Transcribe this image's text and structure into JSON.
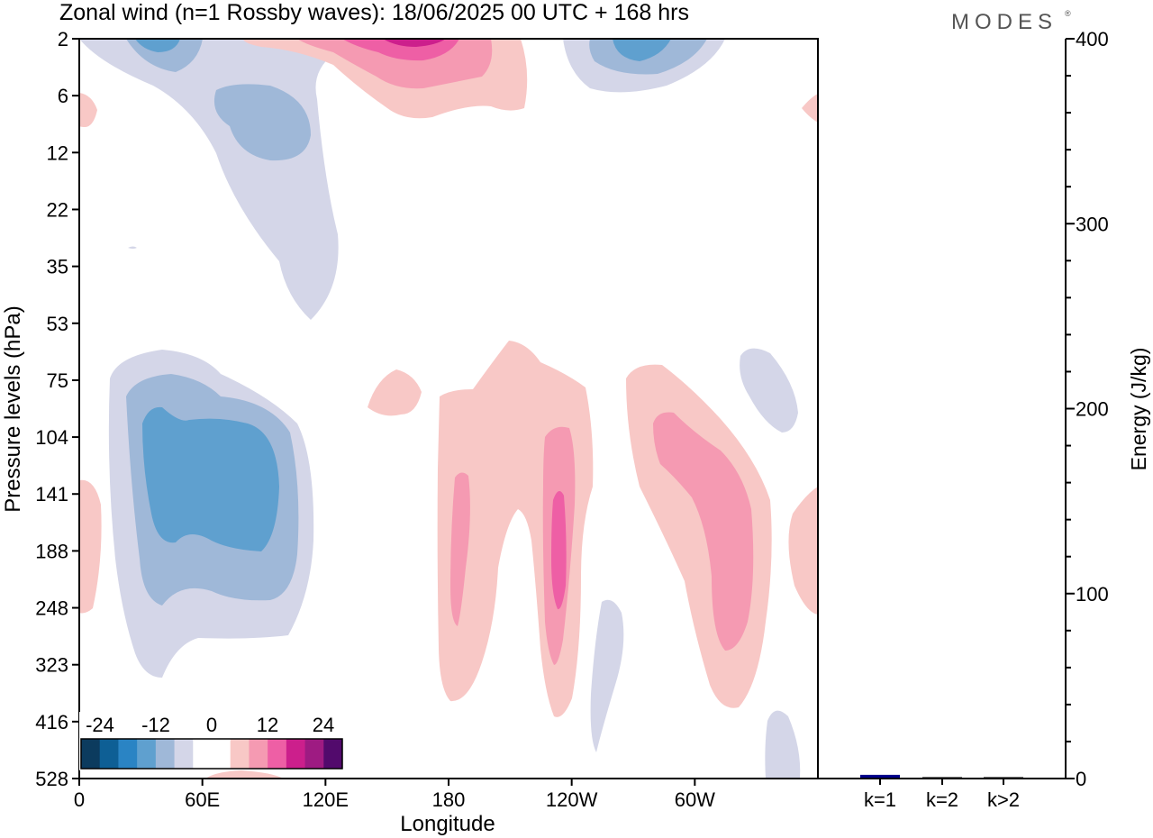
{
  "title": "Zonal wind (n=1 Rossby waves):  18/06/2025  00 UTC  + 168 hrs",
  "brand": "MODES",
  "brand_mark": "®",
  "chart_data": [
    {
      "type": "heatmap",
      "xlabel": "Longitude",
      "ylabel": "Pressure levels (hPa)",
      "x_ticks": [
        "0",
        "60E",
        "120E",
        "180",
        "120W",
        "60W"
      ],
      "x_tick_values": [
        0,
        60,
        120,
        180,
        240,
        300
      ],
      "xlim": [
        0,
        360
      ],
      "y_ticks": [
        "2",
        "6",
        "12",
        "22",
        "35",
        "53",
        "75",
        "104",
        "141",
        "188",
        "248",
        "323",
        "416",
        "528"
      ],
      "y_axis_order": "top-to-bottom",
      "colorbar": {
        "tick_labels": [
          "-24",
          "-12",
          "0",
          "12",
          "24"
        ],
        "colors": [
          "#0c3b5e",
          "#0e5f95",
          "#2a84c4",
          "#5fa0cf",
          "#9fb8d8",
          "#d4d6e8",
          "#ffffff",
          "#ffffff",
          "#f8c8c6",
          "#f59ab2",
          "#ee5fa5",
          "#cc1f8c",
          "#9e1b82",
          "#520a6c"
        ]
      },
      "features": [
        {
          "sign": "negative",
          "peak_magnitude": 12,
          "lon_range": [
            20,
            115
          ],
          "pressure_range": [
            "75",
            "323"
          ]
        },
        {
          "sign": "negative",
          "peak_magnitude": 12,
          "lon_range": [
            5,
            130
          ],
          "pressure_range": [
            "2",
            "53"
          ]
        },
        {
          "sign": "negative",
          "peak_magnitude": 12,
          "lon_range": [
            240,
            300
          ],
          "pressure_range": [
            "2",
            "6"
          ]
        },
        {
          "sign": "positive",
          "peak_magnitude": 18,
          "lon_range": [
            80,
            220
          ],
          "pressure_range": [
            "2",
            "6"
          ]
        },
        {
          "sign": "positive",
          "peak_magnitude": 14,
          "lon_range": [
            175,
            250
          ],
          "pressure_range": [
            "53",
            "416"
          ]
        },
        {
          "sign": "positive",
          "peak_magnitude": 9,
          "lon_range": [
            270,
            340
          ],
          "pressure_range": [
            "75",
            "416"
          ]
        }
      ]
    },
    {
      "type": "bar",
      "categories": [
        "k=1",
        "k=2",
        "k>2"
      ],
      "values": [
        2,
        0.8,
        0.8
      ],
      "ylabel": "Energy (J/kg)",
      "ylim": [
        0,
        400
      ],
      "y_ticks": [
        "0",
        "100",
        "200",
        "300",
        "400"
      ],
      "bar_colors": [
        "#00008b",
        "#222222",
        "#222222"
      ]
    }
  ]
}
